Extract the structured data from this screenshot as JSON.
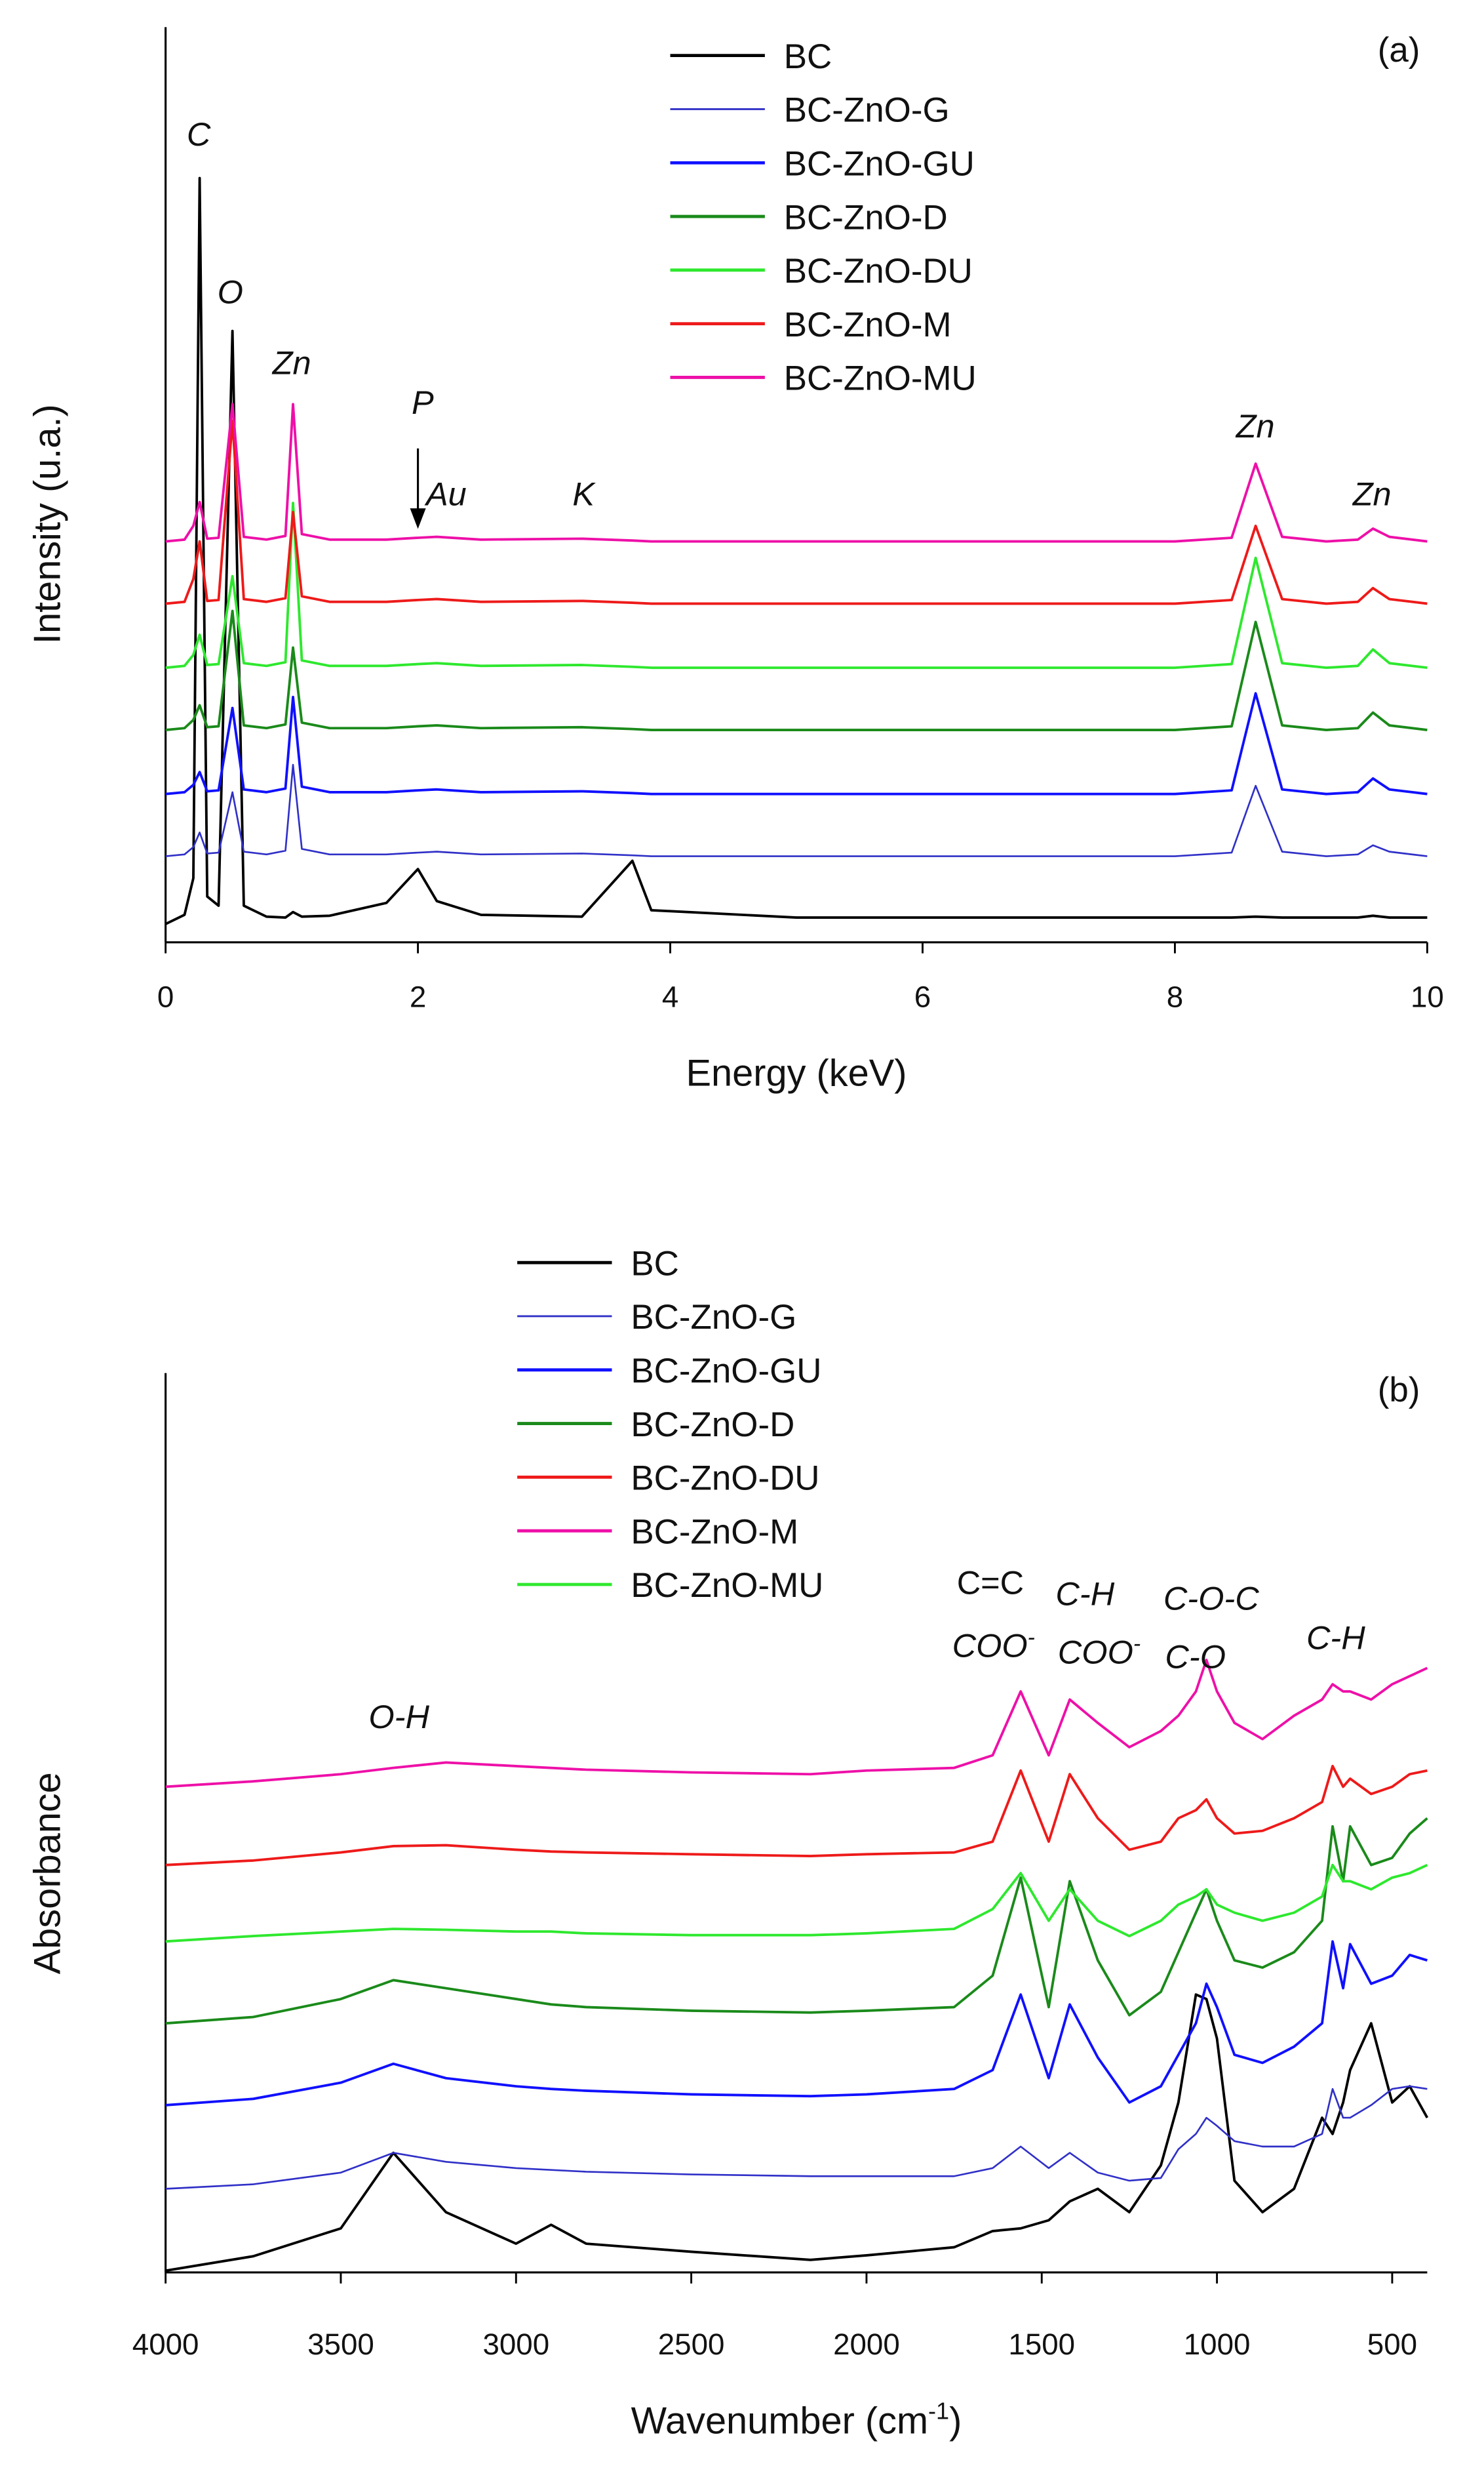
{
  "chart_data": [
    {
      "type": "line",
      "panel_label": "(a)",
      "xlabel": {
        "text": "Energy (keV)"
      },
      "ylabel": "Intensity (u.a.)",
      "xlim": [
        0,
        10
      ],
      "xticks": [
        0,
        2,
        4,
        6,
        8,
        10
      ],
      "ylim": [
        0,
        100
      ],
      "x": [
        0,
        0.15,
        0.22,
        0.27,
        0.33,
        0.42,
        0.53,
        0.62,
        0.8,
        0.95,
        1.01,
        1.08,
        1.3,
        1.75,
        2.0,
        2.15,
        2.5,
        3.3,
        3.7,
        3.85,
        4.0,
        5,
        6,
        7,
        8,
        8.45,
        8.64,
        8.85,
        9.2,
        9.45,
        9.57,
        9.7,
        10
      ],
      "series": [
        {
          "name": "BC",
          "color": "#000000",
          "values": [
            2.0,
            3,
            7,
            83.5,
            5,
            4,
            66.8,
            4,
            2.8,
            2.7,
            3.3,
            2.8,
            2.9,
            4.3,
            8,
            4.5,
            3,
            2.8,
            8.9,
            3.5,
            3.4,
            2.7,
            2.7,
            2.7,
            2.7,
            2.7,
            2.8,
            2.7,
            2.7,
            2.7,
            2.9,
            2.7,
            2.7
          ]
        },
        {
          "name": "BC-ZnO-G",
          "color": "#3030c8",
          "values": [
            9.4,
            9.6,
            10.4,
            12.0,
            9.7,
            9.8,
            16.4,
            9.9,
            9.6,
            10.0,
            19.4,
            10.2,
            9.6,
            9.6,
            9.8,
            9.9,
            9.6,
            9.7,
            9.5,
            9.4,
            9.4,
            9.4,
            9.4,
            9.4,
            9.4,
            9.8,
            17.1,
            9.9,
            9.4,
            9.6,
            10.6,
            9.9,
            9.4
          ]
        },
        {
          "name": "BC-ZnO-GU",
          "color": "#1010ff",
          "values": [
            16.2,
            16.4,
            17.2,
            18.6,
            16.5,
            16.6,
            25.6,
            16.7,
            16.4,
            16.8,
            26.8,
            17.0,
            16.4,
            16.4,
            16.6,
            16.7,
            16.4,
            16.5,
            16.3,
            16.2,
            16.2,
            16.2,
            16.2,
            16.2,
            16.2,
            16.6,
            27.2,
            16.7,
            16.2,
            16.4,
            17.9,
            16.7,
            16.2
          ]
        },
        {
          "name": "BC-ZnO-D",
          "color": "#1a8a1a",
          "values": [
            23.2,
            23.4,
            24.3,
            25.9,
            23.5,
            23.6,
            36.2,
            23.7,
            23.4,
            23.8,
            32.2,
            24.0,
            23.4,
            23.4,
            23.6,
            23.7,
            23.4,
            23.5,
            23.3,
            23.2,
            23.2,
            23.2,
            23.2,
            23.2,
            23.2,
            23.6,
            35.0,
            23.7,
            23.2,
            23.4,
            25.1,
            23.7,
            23.2
          ]
        },
        {
          "name": "BC-ZnO-DU",
          "color": "#2ee82e",
          "values": [
            30.0,
            30.2,
            31.4,
            33.6,
            30.3,
            30.4,
            40.0,
            30.5,
            30.2,
            30.6,
            48.0,
            30.8,
            30.2,
            30.2,
            30.4,
            30.5,
            30.2,
            30.3,
            30.1,
            30.0,
            30.0,
            30.0,
            30.0,
            30.0,
            30.0,
            30.4,
            42.0,
            30.5,
            30.0,
            30.2,
            32.0,
            30.5,
            30.0
          ]
        },
        {
          "name": "BC-ZnO-M",
          "color": "#ee1a1a",
          "values": [
            37.0,
            37.2,
            39.7,
            43.8,
            37.3,
            37.4,
            57.0,
            37.5,
            37.2,
            37.6,
            47.0,
            37.8,
            37.2,
            37.2,
            37.4,
            37.5,
            37.2,
            37.3,
            37.1,
            37.0,
            37.0,
            37.0,
            37.0,
            37.0,
            37.0,
            37.4,
            45.5,
            37.5,
            37.0,
            37.2,
            38.7,
            37.5,
            37.0
          ]
        },
        {
          "name": "BC-ZnO-MU",
          "color": "#ee10a8",
          "values": [
            43.8,
            44.0,
            45.5,
            48.1,
            44.1,
            44.2,
            58.8,
            44.3,
            44.0,
            44.4,
            58.8,
            44.6,
            44.0,
            44.0,
            44.2,
            44.3,
            44.0,
            44.1,
            43.9,
            43.8,
            43.8,
            43.8,
            43.8,
            43.8,
            43.8,
            44.2,
            52.3,
            44.3,
            43.8,
            44.0,
            45.2,
            44.3,
            43.8
          ]
        }
      ],
      "annotations": [
        {
          "text": "C"
        },
        {
          "text": "O"
        },
        {
          "text": "Zn"
        },
        {
          "text": "P"
        },
        {
          "text": "Au"
        },
        {
          "text": "K"
        },
        {
          "text": "Zn"
        },
        {
          "text": "Zn"
        }
      ]
    },
    {
      "type": "line",
      "panel_label": "(b)",
      "xlabel": {
        "text": "Wavenumber (cm",
        "sup": "-1",
        "tail": ")"
      },
      "ylabel": "Absorbance",
      "xlim": [
        4000,
        400
      ],
      "xticks": [
        4000,
        3500,
        3000,
        2500,
        2000,
        1500,
        1000,
        500
      ],
      "ylim": [
        0,
        100
      ],
      "x": [
        4000,
        3750,
        3500,
        3350,
        3200,
        3000,
        2900,
        2800,
        2500,
        2160,
        2000,
        1750,
        1640,
        1560,
        1480,
        1420,
        1340,
        1250,
        1160,
        1110,
        1060,
        1030,
        1000,
        950,
        870,
        780,
        700,
        670,
        640,
        620,
        560,
        500,
        450,
        400
      ],
      "series": [
        {
          "name": "BC",
          "color": "#000000",
          "values": [
            0.2,
            1.8,
            4.9,
            13.3,
            6.7,
            3.2,
            5.3,
            3.2,
            2.3,
            1.4,
            1.9,
            2.8,
            4.6,
            4.9,
            5.8,
            7.9,
            9.3,
            6.7,
            11.9,
            18.9,
            30.9,
            30.4,
            26,
            10.2,
            6.7,
            9.3,
            17.2,
            15.4,
            18.9,
            22.5,
            27.7,
            18.9,
            20.7,
            17.2
          ]
        },
        {
          "name": "BC-ZnO-G",
          "color": "#3030c8",
          "values": [
            9.3,
            9.8,
            11.1,
            13.3,
            12.3,
            11.6,
            11.4,
            11.2,
            10.9,
            10.7,
            10.7,
            10.7,
            11.6,
            14.0,
            11.6,
            13.3,
            11.1,
            10.2,
            10.5,
            13.7,
            15.4,
            17.2,
            16.3,
            14.6,
            14.0,
            14.0,
            15.4,
            20.4,
            17.2,
            17.2,
            18.6,
            20.4,
            20.7,
            20.4
          ]
        },
        {
          "name": "BC-ZnO-GU",
          "color": "#1010ff",
          "values": [
            18.6,
            19.3,
            21.1,
            23.2,
            21.6,
            20.7,
            20.4,
            20.2,
            19.8,
            19.6,
            19.8,
            20.4,
            22.5,
            30.9,
            21.6,
            29.8,
            23.9,
            18.9,
            20.7,
            24.2,
            27.7,
            32.1,
            29.5,
            24.2,
            23.3,
            25.1,
            27.7,
            36.8,
            31.6,
            36.5,
            32.1,
            33.0,
            35.3,
            34.7
          ]
        },
        {
          "name": "BC-ZnO-D",
          "color": "#1a8a1a",
          "values": [
            27.7,
            28.4,
            30.4,
            32.5,
            31.6,
            30.4,
            29.8,
            29.5,
            29.1,
            28.9,
            29.1,
            29.5,
            33.0,
            43.9,
            29.5,
            43.5,
            34.7,
            28.6,
            31.2,
            35.6,
            40.0,
            42.6,
            39.1,
            34.7,
            33.9,
            35.6,
            39.1,
            49.6,
            43.5,
            49.6,
            45.3,
            46.1,
            48.8,
            50.5
          ]
        },
        {
          "name": "BC-ZnO-DU",
          "color": "#ee1a1a",
          "values": [
            45.3,
            45.8,
            46.7,
            47.4,
            47.5,
            47.0,
            46.8,
            46.7,
            46.5,
            46.3,
            46.5,
            46.7,
            47.9,
            55.8,
            47.9,
            55.4,
            50.5,
            47.0,
            47.9,
            50.5,
            51.4,
            52.6,
            50.5,
            48.8,
            49.1,
            50.5,
            52.3,
            56.3,
            54.0,
            54.9,
            53.2,
            54.0,
            55.4,
            55.8
          ]
        },
        {
          "name": "BC-ZnO-M",
          "color": "#ee10a8",
          "values": [
            54.0,
            54.6,
            55.4,
            56.1,
            56.7,
            56.3,
            56.1,
            55.9,
            55.6,
            55.4,
            55.8,
            56.1,
            57.5,
            64.6,
            57.5,
            63.7,
            61.1,
            58.4,
            60.2,
            61.9,
            64.6,
            68.1,
            64.6,
            61.1,
            59.3,
            61.9,
            63.7,
            65.4,
            64.6,
            64.6,
            63.7,
            65.4,
            66.3,
            67.2
          ]
        },
        {
          "name": "BC-ZnO-MU",
          "color": "#2ee82e",
          "values": [
            36.8,
            37.4,
            37.9,
            38.2,
            38.1,
            37.9,
            37.9,
            37.7,
            37.5,
            37.5,
            37.7,
            38.2,
            40.4,
            44.4,
            39.1,
            42.6,
            39.1,
            37.4,
            39.1,
            40.9,
            41.8,
            42.6,
            40.9,
            40.0,
            39.1,
            40.0,
            41.8,
            45.3,
            43.5,
            43.5,
            42.6,
            43.9,
            44.4,
            45.3
          ]
        }
      ],
      "annotations": [
        {
          "text": "O-H"
        },
        {
          "text": "C=C"
        },
        {
          "text": "COO",
          "sup": "-"
        },
        {
          "text": "C-H"
        },
        {
          "text": "COO",
          "sup": "-"
        },
        {
          "text": "C-O-C"
        },
        {
          "text": "C-O"
        },
        {
          "text": "C-H"
        }
      ]
    }
  ]
}
